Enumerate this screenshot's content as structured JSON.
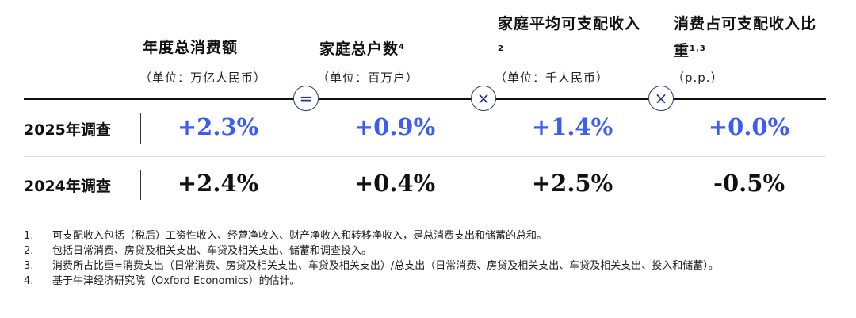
{
  "columns": [
    {
      "title": "年度总消费额",
      "sup": "",
      "unit": "（单位：万亿人民币）"
    },
    {
      "title": "家庭总户数",
      "sup": "4",
      "unit": "（单位：百万户）"
    },
    {
      "title": "家庭平均可支配收入",
      "sup": "2",
      "unit": "（单位：千人民币）"
    },
    {
      "title": "消费占可支配收入比重",
      "sup": "1,3",
      "unit": "（p.p.）"
    }
  ],
  "operators": [
    {
      "icon": "equals-icon",
      "symbol": "="
    },
    {
      "icon": "times-icon",
      "symbol": "×"
    },
    {
      "icon": "times-icon",
      "symbol": "×"
    }
  ],
  "rows": [
    {
      "label": "2025年调查",
      "values": [
        "+2.3%",
        "+0.9%",
        "+1.4%",
        "+0.0%"
      ],
      "color": "#3d5cf5"
    },
    {
      "label": "2024年调查",
      "values": [
        "+2.4%",
        "+0.4%",
        "+2.5%",
        "-0.5%"
      ],
      "color": "#111111"
    }
  ],
  "footnotes": [
    {
      "n": "1.",
      "text": "可支配收入包括（税后）工资性收入、经营净收入、财产净收入和转移净收入，是总消费支出和储蓄的总和。"
    },
    {
      "n": "2.",
      "text": "包括日常消费、房贷及相关支出、车贷及相关支出、储蓄和调查投入。"
    },
    {
      "n": "3.",
      "text": "消费所占比重=消费支出（日常消费、房贷及相关支出、车贷及相关支出）/总支出（日常消费、房贷及相关支出、车贷及相关支出、投入和储蓄）。"
    },
    {
      "n": "4.",
      "text": "基于牛津经济研究院（Oxford Economics）的估计。"
    }
  ]
}
